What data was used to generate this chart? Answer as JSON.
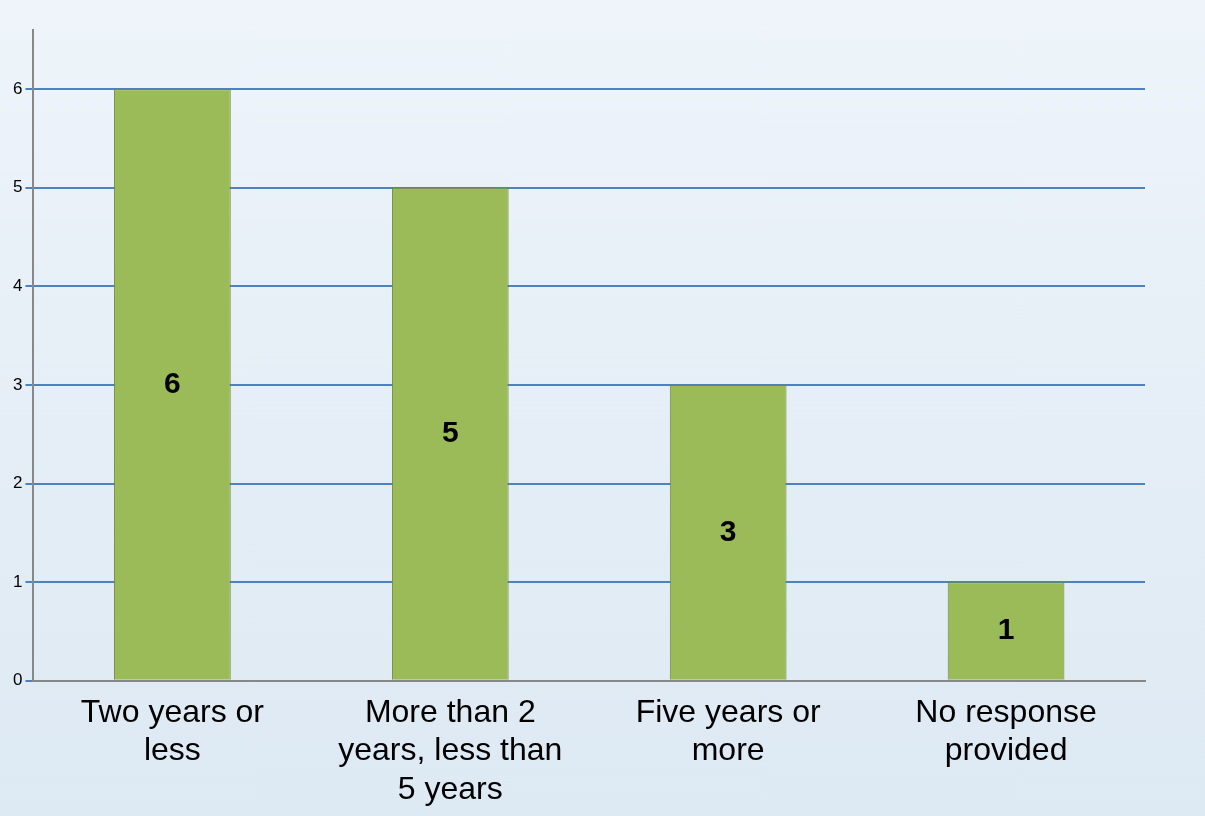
{
  "chart_data": {
    "type": "bar",
    "categories": [
      "Two years or less",
      "More than 2 years, less than 5 years",
      "Five years or more",
      "No response provided"
    ],
    "values": [
      6,
      5,
      3,
      1
    ],
    "color": "#9bbb59",
    "ylim": [
      0,
      6.6
    ],
    "yticks": [
      0,
      1,
      2,
      3,
      4,
      5,
      6
    ],
    "grid": "y",
    "data_labels": true
  }
}
